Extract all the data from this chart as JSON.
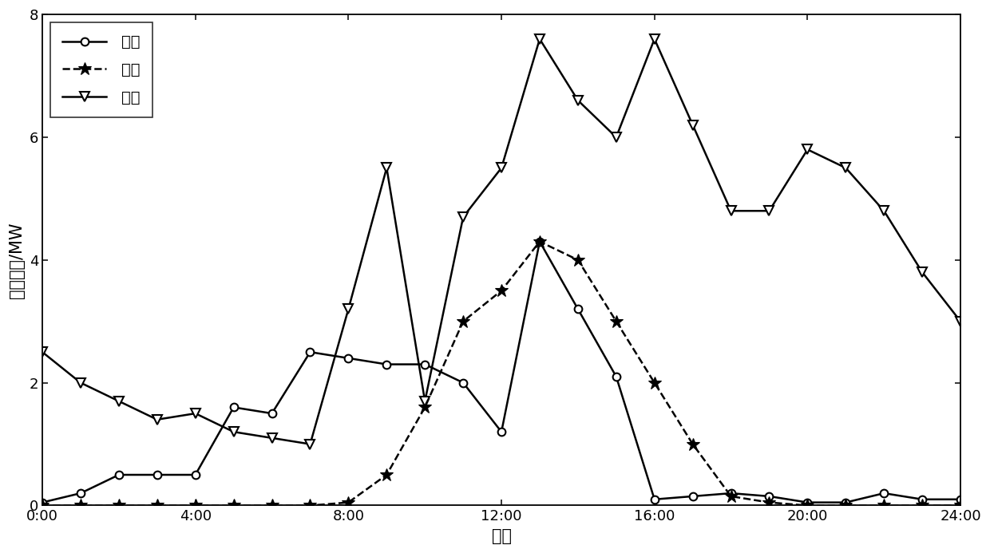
{
  "xlabel": "时刻",
  "ylabel": "预测数据/MW",
  "xlim": [
    0,
    24
  ],
  "ylim": [
    0,
    8
  ],
  "yticks": [
    0,
    2,
    4,
    6,
    8
  ],
  "xticks": [
    0,
    4,
    8,
    12,
    16,
    20,
    24
  ],
  "xticklabels": [
    "0:00",
    "4:00",
    "8:00",
    "12:00",
    "16:00",
    "20:00",
    "24:00"
  ],
  "wind_x": [
    0,
    1,
    2,
    3,
    4,
    5,
    6,
    7,
    8,
    9,
    10,
    11,
    12,
    13,
    14,
    15,
    16,
    17,
    18,
    19,
    20,
    21,
    22,
    23,
    24
  ],
  "wind_y": [
    0.05,
    0.2,
    0.5,
    0.5,
    0.5,
    1.6,
    1.5,
    2.5,
    2.4,
    2.3,
    2.3,
    2.0,
    1.2,
    4.3,
    3.2,
    2.1,
    0.1,
    0.15,
    0.2,
    0.15,
    0.05,
    0.05,
    0.2,
    0.1,
    0.1
  ],
  "pv_x": [
    0,
    1,
    2,
    3,
    4,
    5,
    6,
    7,
    8,
    9,
    10,
    11,
    12,
    13,
    14,
    15,
    16,
    17,
    18,
    19,
    20,
    21,
    22,
    23,
    24
  ],
  "pv_y": [
    0,
    0,
    0,
    0,
    0,
    0,
    0,
    0,
    0.05,
    0.5,
    1.6,
    3.0,
    3.5,
    4.3,
    4.0,
    3.0,
    2.0,
    1.0,
    0.15,
    0.05,
    0.0,
    0.0,
    0.0,
    0.0,
    0.0
  ],
  "load_x": [
    0,
    1,
    2,
    3,
    4,
    5,
    6,
    7,
    8,
    9,
    10,
    11,
    12,
    13,
    14,
    15,
    16,
    17,
    18,
    19,
    20,
    21,
    22,
    23,
    24
  ],
  "load_y": [
    2.5,
    2.0,
    1.7,
    1.4,
    1.5,
    1.2,
    1.1,
    1.0,
    3.2,
    5.5,
    1.7,
    4.7,
    5.5,
    7.6,
    6.6,
    6.0,
    7.6,
    6.2,
    4.8,
    4.8,
    5.8,
    5.5,
    4.8,
    3.8,
    3.0
  ],
  "legend_labels": [
    "风机",
    "光伏",
    "负荷"
  ],
  "line_color": "#000000",
  "fontsize_label": 15,
  "fontsize_tick": 13,
  "fontsize_legend": 14
}
